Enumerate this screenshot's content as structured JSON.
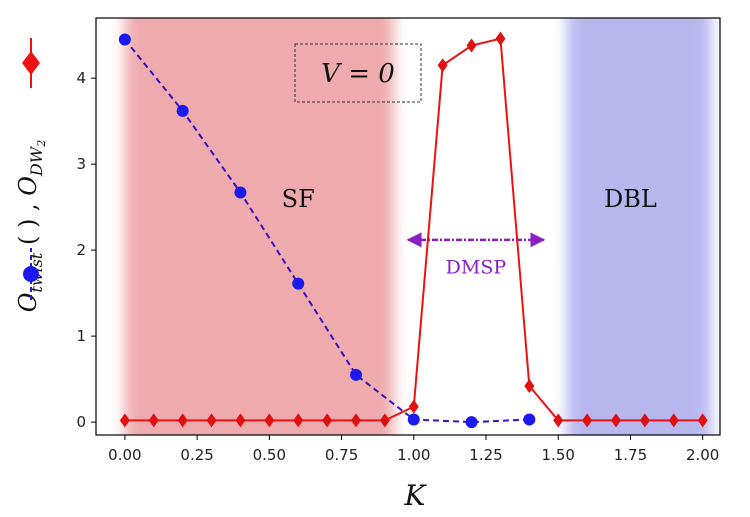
{
  "chart_data": {
    "type": "line",
    "xlim": [
      -0.1,
      2.06
    ],
    "ylim": [
      -0.15,
      4.7
    ],
    "xticks": [
      "0.00",
      "0.25",
      "0.50",
      "0.75",
      "1.00",
      "1.25",
      "1.50",
      "1.75",
      "2.00"
    ],
    "xtick_values": [
      0,
      0.25,
      0.5,
      0.75,
      1.0,
      1.25,
      1.5,
      1.75,
      2.0
    ],
    "yticks": [
      "0",
      "1",
      "2",
      "3",
      "4"
    ],
    "ytick_values": [
      0,
      1,
      2,
      3,
      4
    ],
    "xlabel": "K",
    "ylabel_parts": [
      "O",
      "twist",
      " ( ",
      " ) , ",
      "O",
      "DW",
      "2"
    ],
    "annotation_box": "V = 0",
    "regions": [
      {
        "label": "SF",
        "x_start": 0.0,
        "x_end": 0.93,
        "color": "#e88a8e",
        "label_x": 0.6,
        "label_y": 2.5
      },
      {
        "label": "DBL",
        "x_start": 1.53,
        "x_end": 2.03,
        "color": "#9c9ce8",
        "label_x": 1.75,
        "label_y": 2.5
      }
    ],
    "arrow": {
      "label": "DMSP",
      "x_start": 0.98,
      "x_end": 1.45,
      "y": 2.12,
      "label_y": 1.8,
      "color": "#8b1fc4"
    },
    "series": [
      {
        "key": "twist",
        "color": "#1a1aee",
        "line_color": "#3a10c0",
        "marker": "circle",
        "dashed": true,
        "x": [
          0.0,
          0.2,
          0.4,
          0.6,
          0.8,
          1.0,
          1.2,
          1.4
        ],
        "y": [
          4.45,
          3.62,
          2.67,
          1.61,
          0.55,
          0.03,
          0.0,
          0.03
        ]
      },
      {
        "key": "dw2",
        "color": "#e01010",
        "line_color": "#ee1111",
        "marker": "diamond",
        "dashed": false,
        "x": [
          0.0,
          0.1,
          0.2,
          0.3,
          0.4,
          0.5,
          0.6,
          0.7,
          0.8,
          0.9,
          1.0,
          1.1,
          1.2,
          1.3,
          1.4,
          1.5,
          1.6,
          1.7,
          1.8,
          1.9,
          2.0
        ],
        "y": [
          0.02,
          0.02,
          0.02,
          0.02,
          0.02,
          0.02,
          0.02,
          0.02,
          0.02,
          0.02,
          0.18,
          4.15,
          4.38,
          4.46,
          0.42,
          0.02,
          0.02,
          0.02,
          0.02,
          0.02,
          0.02
        ]
      }
    ]
  }
}
